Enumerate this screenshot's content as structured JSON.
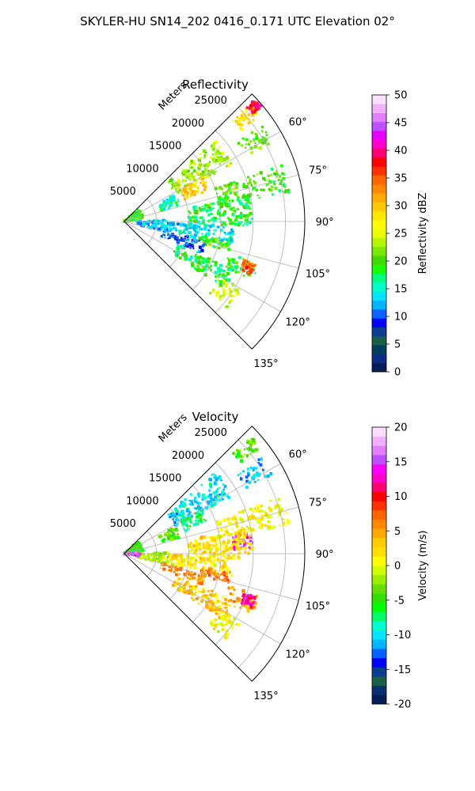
{
  "figure_title": "SKYLER-HU  SN14_202  0416_0.171 UTC Elevation 02°",
  "colors": {
    "ref_colormap": [
      "#081d58",
      "#0c2c84",
      "#003f5c",
      "#1a5e4a",
      "#0b3d91",
      "#0000ff",
      "#0a63ff",
      "#00b5ff",
      "#00e5ff",
      "#00ffc8",
      "#00ff7f",
      "#19ff00",
      "#45d800",
      "#7ae800",
      "#b5f500",
      "#e8ff00",
      "#ffff00",
      "#ffe400",
      "#ffc800",
      "#ffaa00",
      "#ff8800",
      "#ff6600",
      "#ff3300",
      "#ff0000",
      "#ff0070",
      "#ff00c8",
      "#e600ff",
      "#c050ff",
      "#e080ff",
      "#f0b0ff",
      "#fde0ff"
    ],
    "vel_colormap": [
      "#081d58",
      "#0a2f6b",
      "#1a5e4a",
      "#0b3d91",
      "#0000ff",
      "#0063ff",
      "#00b5ff",
      "#00e5ff",
      "#00ffd0",
      "#00ff66",
      "#00ff00",
      "#33dd00",
      "#66dd00",
      "#99ee00",
      "#ccff00",
      "#ffff00",
      "#ffe000",
      "#ffcc00",
      "#ffaa00",
      "#ff8800",
      "#ff6600",
      "#ff3300",
      "#ff0000",
      "#ff0070",
      "#ff00c8",
      "#ff00ff",
      "#c050ff",
      "#e080ff",
      "#f0b0ff",
      "#fde0ff"
    ]
  },
  "chart_data": [
    {
      "type": "heatmap",
      "subtype": "polar-sector radar PPI",
      "title": "Reflectivity",
      "radial_label": "Meters",
      "range_ticks": [
        5000,
        10000,
        15000,
        20000,
        25000
      ],
      "range_tick_labels": [
        "5000",
        "10000",
        "15000",
        "20000",
        "25000"
      ],
      "range_max": 28000,
      "azimuth_range_deg": [
        45,
        135
      ],
      "azimuth_ticks_deg": [
        60,
        75,
        90,
        105,
        120,
        135
      ],
      "azimuth_tick_labels": [
        "60°",
        "75°",
        "90°",
        "105°",
        "120°",
        "135°"
      ],
      "grid": true,
      "colorbar": {
        "label": "Reflectivity dBZ",
        "min": 0,
        "max": 50,
        "ticks": [
          0,
          5,
          10,
          15,
          20,
          25,
          30,
          35,
          40,
          45,
          50
        ],
        "tick_labels": [
          "0",
          "5",
          "10",
          "15",
          "20",
          "25",
          "30",
          "35",
          "40",
          "45",
          "50"
        ],
        "levels": 30
      },
      "echo_regions": [
        {
          "az": [
            47,
            52
          ],
          "r": [
            23000,
            27000
          ],
          "value": 28
        },
        {
          "az": [
            47,
            50
          ],
          "r": [
            26000,
            27800
          ],
          "value": 38
        },
        {
          "az": [
            55,
            62
          ],
          "r": [
            21500,
            26000
          ],
          "value": 20
        },
        {
          "az": [
            48,
            62
          ],
          "r": [
            9000,
            19000
          ],
          "value": 23
        },
        {
          "az": [
            60,
            70
          ],
          "r": [
            10000,
            14000
          ],
          "value": 30
        },
        {
          "az": [
            62,
            74
          ],
          "r": [
            6000,
            9000
          ],
          "value": 16
        },
        {
          "az": [
            70,
            80
          ],
          "r": [
            15000,
            26000
          ],
          "value": 20
        },
        {
          "az": [
            78,
            92
          ],
          "r": [
            10000,
            20000
          ],
          "value": 18
        },
        {
          "az": [
            88,
            104
          ],
          "r": [
            2000,
            7000
          ],
          "value": 13
        },
        {
          "az": [
            92,
            103
          ],
          "r": [
            7000,
            17000
          ],
          "value": 14
        },
        {
          "az": [
            100,
            106
          ],
          "r": [
            12000,
            17000
          ],
          "value": 20
        },
        {
          "az": [
            104,
            112
          ],
          "r": [
            6000,
            13000
          ],
          "value": 10
        },
        {
          "az": [
            48,
            80
          ],
          "r": [
            0,
            3000
          ],
          "value": 20
        },
        {
          "az": [
            107,
            115
          ],
          "r": [
            17000,
            22000
          ],
          "value": 20
        },
        {
          "az": [
            108,
            113
          ],
          "r": [
            19500,
            21500
          ],
          "value": 35
        },
        {
          "az": [
            113,
            124
          ],
          "r": [
            9000,
            19000
          ],
          "value": 18
        },
        {
          "az": [
            120,
            130
          ],
          "r": [
            17000,
            21000
          ],
          "value": 25
        }
      ]
    },
    {
      "type": "heatmap",
      "subtype": "polar-sector radar PPI",
      "title": "Velocity",
      "radial_label": "Meters",
      "range_ticks": [
        5000,
        10000,
        15000,
        20000,
        25000
      ],
      "range_tick_labels": [
        "5000",
        "10000",
        "15000",
        "20000",
        "25000"
      ],
      "range_max": 28000,
      "azimuth_range_deg": [
        45,
        135
      ],
      "azimuth_ticks_deg": [
        60,
        75,
        90,
        105,
        120,
        135
      ],
      "azimuth_tick_labels": [
        "60°",
        "75°",
        "90°",
        "105°",
        "120°",
        "135°"
      ],
      "grid": true,
      "colorbar": {
        "label": "Velocity (m/s)",
        "min": -20,
        "max": 20,
        "ticks": [
          -20,
          -15,
          -10,
          -5,
          0,
          5,
          10,
          15,
          20
        ],
        "tick_labels": [
          "-20",
          "-15",
          "-10",
          "-5",
          "0",
          "5",
          "10",
          "15",
          "20"
        ],
        "levels": 30
      },
      "echo_regions": [
        {
          "az": [
            47,
            52
          ],
          "r": [
            23000,
            27000
          ],
          "value": -4
        },
        {
          "az": [
            55,
            62
          ],
          "r": [
            21500,
            26000
          ],
          "value": -11
        },
        {
          "az": [
            48,
            62
          ],
          "r": [
            9000,
            19000
          ],
          "value": -10
        },
        {
          "az": [
            60,
            70
          ],
          "r": [
            10000,
            14000
          ],
          "value": -7
        },
        {
          "az": [
            62,
            74
          ],
          "r": [
            6000,
            9000
          ],
          "value": -4
        },
        {
          "az": [
            70,
            80
          ],
          "r": [
            15000,
            26000
          ],
          "value": 1
        },
        {
          "az": [
            80,
            88
          ],
          "r": [
            17000,
            20000
          ],
          "value": 14
        },
        {
          "az": [
            78,
            92
          ],
          "r": [
            10000,
            20000
          ],
          "value": 2
        },
        {
          "az": [
            88,
            104
          ],
          "r": [
            2000,
            7000
          ],
          "value": -1
        },
        {
          "az": [
            92,
            103
          ],
          "r": [
            7000,
            17000
          ],
          "value": 2
        },
        {
          "az": [
            100,
            106
          ],
          "r": [
            12000,
            17000
          ],
          "value": 7
        },
        {
          "az": [
            104,
            112
          ],
          "r": [
            6000,
            13000
          ],
          "value": 6
        },
        {
          "az": [
            48,
            80
          ],
          "r": [
            0,
            3000
          ],
          "value": -5
        },
        {
          "az": [
            85,
            100
          ],
          "r": [
            0,
            2500
          ],
          "value": 15
        },
        {
          "az": [
            107,
            115
          ],
          "r": [
            17000,
            22000
          ],
          "value": 5
        },
        {
          "az": [
            108,
            113
          ],
          "r": [
            19500,
            21500
          ],
          "value": 12
        },
        {
          "az": [
            113,
            124
          ],
          "r": [
            9000,
            19000
          ],
          "value": 3
        },
        {
          "az": [
            120,
            130
          ],
          "r": [
            17000,
            21000
          ],
          "value": 1
        }
      ]
    }
  ]
}
